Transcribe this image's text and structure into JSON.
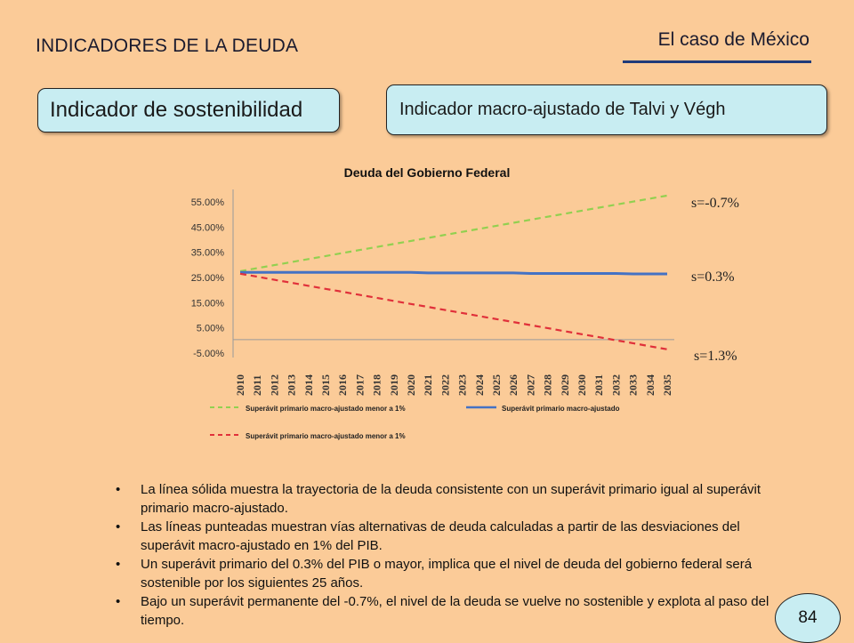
{
  "header": {
    "section": "INDICADORES DE LA DEUDA",
    "case": "El caso de México"
  },
  "boxes": {
    "left": "Indicador de sostenibilidad",
    "right": "Indicador macro-ajustado de Talvi y Végh"
  },
  "chart_data": {
    "type": "line",
    "title": "Deuda del Gobierno Federal",
    "xlabel": "",
    "ylabel": "",
    "x": [
      "2010",
      "2011",
      "2012",
      "2013",
      "2014",
      "2015",
      "2016",
      "2017",
      "2018",
      "2019",
      "2020",
      "2021",
      "2022",
      "2023",
      "2024",
      "2025",
      "2026",
      "2027",
      "2028",
      "2029",
      "2030",
      "2031",
      "2032",
      "2033",
      "2034",
      "2035"
    ],
    "y_ticks": [
      "55.00%",
      "45.00%",
      "35.00%",
      "25.00%",
      "15.00%",
      "5.00%",
      "-5.00%"
    ],
    "ylim": [
      -5,
      55
    ],
    "grid": false,
    "legend_position": "bottom",
    "series": [
      {
        "name": "Superávit primario macro-ajustado menor a 1%",
        "color": "#92D050",
        "style": "dashed",
        "values": [
          27.5,
          28.7,
          29.9,
          31.1,
          32.3,
          33.5,
          34.7,
          35.9,
          37.1,
          38.3,
          39.5,
          40.7,
          41.9,
          43.1,
          44.3,
          45.5,
          46.7,
          47.9,
          49.1,
          50.3,
          51.5,
          52.7,
          53.9,
          55.1,
          56.3,
          57.5
        ]
      },
      {
        "name": "Superávit primario macro-ajustado",
        "color": "#4472C4",
        "style": "solid",
        "values": [
          27.0,
          27.0,
          27.0,
          27.0,
          27.0,
          27.0,
          27.0,
          27.0,
          27.0,
          27.0,
          27.0,
          26.8,
          26.8,
          26.8,
          26.8,
          26.8,
          26.8,
          26.6,
          26.6,
          26.6,
          26.6,
          26.6,
          26.6,
          26.4,
          26.4,
          26.4
        ]
      },
      {
        "name": "Superávit primario macro-ajustado menor a 1%",
        "color": "#E0303A",
        "style": "dashed",
        "values": [
          26.5,
          25.3,
          24.1,
          22.9,
          21.7,
          20.5,
          19.3,
          18.1,
          16.9,
          15.7,
          14.5,
          13.3,
          12.1,
          10.9,
          9.7,
          8.5,
          7.3,
          6.1,
          4.9,
          3.7,
          2.5,
          1.3,
          0.1,
          -1.1,
          -2.3,
          -3.5
        ]
      }
    ],
    "annotations": [
      "s=-0.7%",
      "s=0.3%",
      "s=1.3%"
    ],
    "legend": [
      "Superávit primario macro-ajustado menor a 1%",
      "Superávit primario macro-ajustado",
      "Superávit primario macro-ajustado menor a 1%"
    ]
  },
  "bullets": [
    "La línea sólida muestra la trayectoria de la deuda consistente con un superávit primario igual al superávit primario macro-ajustado.",
    "Las líneas punteadas muestran vías alternativas de deuda calculadas a partir de las desviaciones del superávit macro-ajustado en 1% del PIB.",
    "Un superávit primario del 0.3% del PIB o mayor, implica que el nivel de deuda del gobierno federal será sostenible por los siguientes 25 años.",
    "Bajo un superávit permanente del -0.7%, el nivel de la deuda se vuelve no sostenible y explota al paso del tiempo."
  ],
  "page_number": "84",
  "colors": {
    "background": "#FBCB98",
    "box_fill": "#C8EDF2",
    "rule": "#1F3B7A"
  }
}
